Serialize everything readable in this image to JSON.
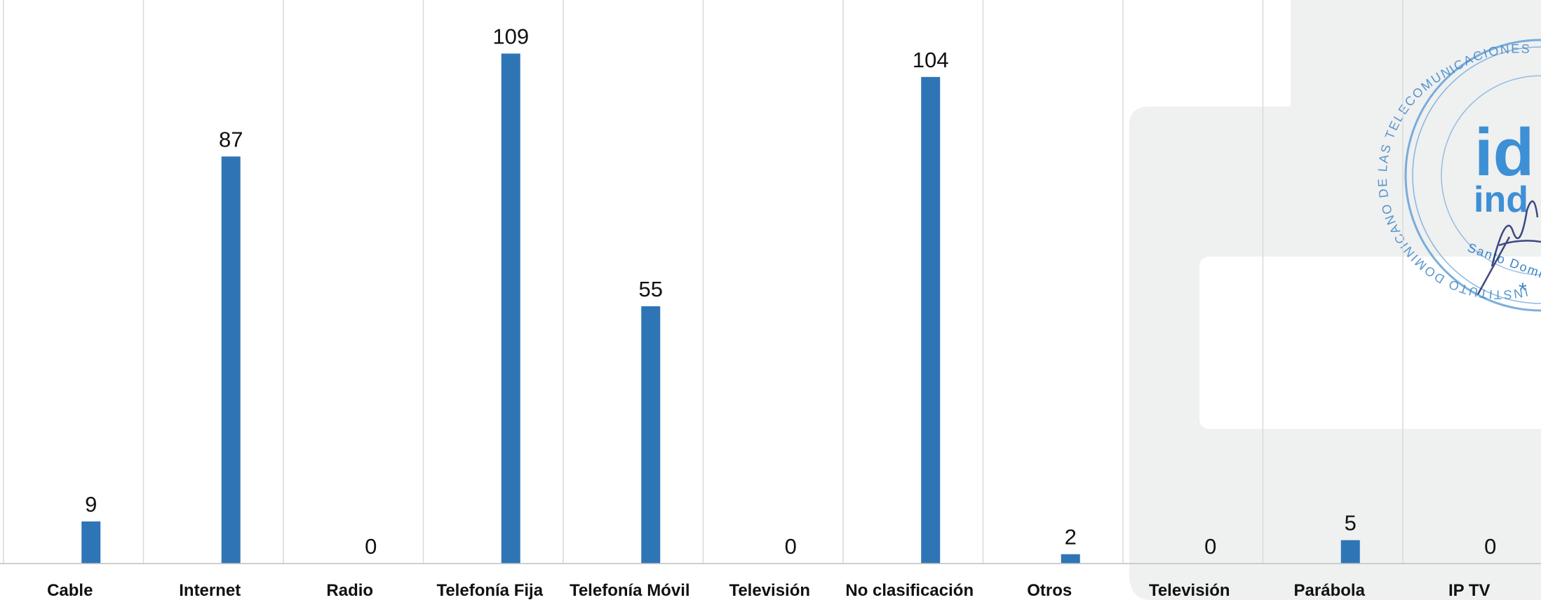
{
  "chart_data": {
    "type": "bar",
    "categories": [
      "Cable",
      "Internet",
      "Radio",
      "Telefonía Fija",
      "Telefonía Móvil",
      "Televisión",
      "No clasificación",
      "Otros",
      "Televisión",
      "Parábola",
      "IP TV"
    ],
    "values": [
      9,
      87,
      0,
      109,
      55,
      0,
      104,
      2,
      0,
      5,
      0
    ],
    "ylim": [
      0,
      120
    ],
    "grid": "vertical separators",
    "data_labels": true,
    "colors": {
      "bar": "#2e75b6",
      "grid": "#d9d9d9",
      "axis": "#bfbfbf",
      "background_panel": "#eff0f0",
      "stamp": "#3d86c6",
      "signature": "#1d2a6b"
    }
  },
  "stamp": {
    "arc_text": "INSTITUTO DOMINICANO DE LAS TELECOMUNICACIONES",
    "logo_top": "id",
    "logo_bottom": "ind",
    "city_text": "Santo Domingo"
  }
}
